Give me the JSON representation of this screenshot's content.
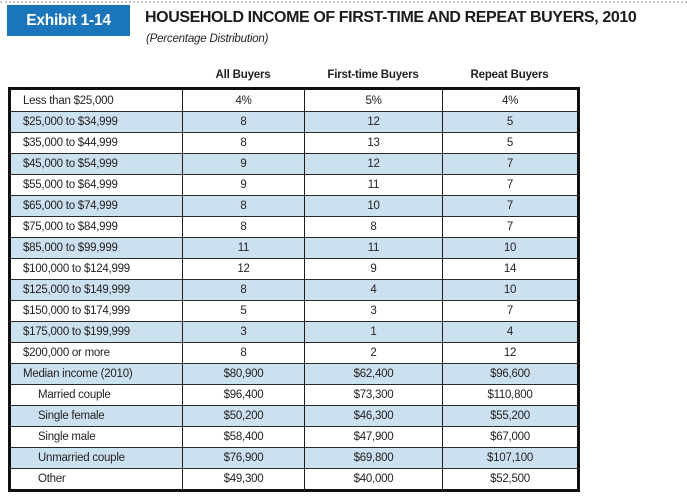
{
  "exhibit": {
    "badge": "Exhibit 1-14",
    "title": "HOUSEHOLD INCOME OF FIRST-TIME AND REPEAT BUYERS, 2010",
    "subtitle": "(Percentage Distribution)"
  },
  "colors": {
    "accent_blue": "#1b75bb",
    "row_blue": "#cce1ef",
    "text_ink": "#231f20",
    "border_black": "#101010"
  },
  "chart_data": {
    "type": "table",
    "title": "HOUSEHOLD INCOME OF FIRST-TIME AND REPEAT BUYERS, 2010",
    "subtitle": "(Percentage Distribution)",
    "columns": [
      "",
      "All Buyers",
      "First-time Buyers",
      "Repeat Buyers"
    ],
    "rows": [
      {
        "label": "Less than $25,000",
        "indent": false,
        "values": [
          "4%",
          "5%",
          "4%"
        ]
      },
      {
        "label": "$25,000 to $34,999",
        "indent": false,
        "values": [
          "8",
          "12",
          "5"
        ]
      },
      {
        "label": "$35,000 to $44,999",
        "indent": false,
        "values": [
          "8",
          "13",
          "5"
        ]
      },
      {
        "label": "$45,000 to $54,999",
        "indent": false,
        "values": [
          "9",
          "12",
          "7"
        ]
      },
      {
        "label": "$55,000 to $64,999",
        "indent": false,
        "values": [
          "9",
          "11",
          "7"
        ]
      },
      {
        "label": "$65,000 to $74,999",
        "indent": false,
        "values": [
          "8",
          "10",
          "7"
        ]
      },
      {
        "label": "$75,000 to $84,999",
        "indent": false,
        "values": [
          "8",
          "8",
          "7"
        ]
      },
      {
        "label": "$85,000 to $99,999",
        "indent": false,
        "values": [
          "11",
          "11",
          "10"
        ]
      },
      {
        "label": "$100,000 to $124,999",
        "indent": false,
        "values": [
          "12",
          "9",
          "14"
        ]
      },
      {
        "label": "$125,000 to $149,999",
        "indent": false,
        "values": [
          "8",
          "4",
          "10"
        ]
      },
      {
        "label": "$150,000 to $174,999",
        "indent": false,
        "values": [
          "5",
          "3",
          "7"
        ]
      },
      {
        "label": "$175,000 to $199,999",
        "indent": false,
        "values": [
          "3",
          "1",
          "4"
        ]
      },
      {
        "label": "$200,000 or more",
        "indent": false,
        "values": [
          "8",
          "2",
          "12"
        ]
      },
      {
        "label": "Median income (2010)",
        "indent": false,
        "values": [
          "$80,900",
          "$62,400",
          "$96,600"
        ]
      },
      {
        "label": "Married couple",
        "indent": true,
        "values": [
          "$96,400",
          "$73,300",
          "$110,800"
        ]
      },
      {
        "label": "Single female",
        "indent": true,
        "values": [
          "$50,200",
          "$46,300",
          "$55,200"
        ]
      },
      {
        "label": "Single male",
        "indent": true,
        "values": [
          "$58,400",
          "$47,900",
          "$67,000"
        ]
      },
      {
        "label": "Unmarried couple",
        "indent": true,
        "values": [
          "$76,900",
          "$69,800",
          "$107,100"
        ]
      },
      {
        "label": "Other",
        "indent": true,
        "values": [
          "$49,300",
          "$40,000",
          "$52,500"
        ]
      }
    ]
  }
}
